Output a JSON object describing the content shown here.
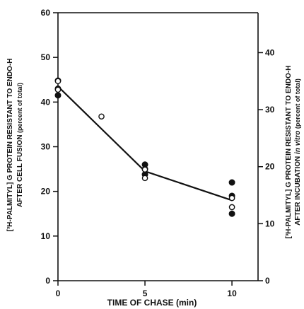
{
  "chart_data": {
    "type": "scatter",
    "xlabel": "TIME OF CHASE (min)",
    "ylabel_left": {
      "line1": "[³H-PALMITYL] G PROTEIN RESISTANT TO ENDO-H",
      "line2_main": "AFTER CELL FUSION",
      "line2_unit": " (percent of total)"
    },
    "ylabel_right": {
      "line1": "[³H-PALMITYL] G PROTEIN RESISTANT TO ENDO-H",
      "line2_main": "AFTER INCUBATION ",
      "line2_italic": "in vitro",
      "line2_unit": " (percent of total)"
    },
    "x_ticks": [
      "0",
      "5",
      "10"
    ],
    "x_tick_values": [
      0,
      5,
      10
    ],
    "xlim": [
      0,
      11.5
    ],
    "left_y_ticks": [
      "0",
      "10",
      "20",
      "30",
      "40",
      "50",
      "60"
    ],
    "left_y_tick_values": [
      0,
      10,
      20,
      30,
      40,
      50,
      60
    ],
    "ylim_left": [
      0,
      60
    ],
    "right_y_ticks": [
      "0",
      "10",
      "20",
      "30",
      "40"
    ],
    "right_y_tick_values": [
      0,
      10,
      20,
      30,
      40
    ],
    "ylim_right": [
      0,
      47
    ],
    "grid": false,
    "series": [
      {
        "marker": "filled-circle",
        "axis": "left",
        "points": [
          [
            0,
            41.5
          ],
          [
            0,
            43.0
          ],
          [
            0,
            44.8
          ],
          [
            5,
            23.8
          ],
          [
            5,
            25.0
          ],
          [
            5,
            26.0
          ],
          [
            10,
            15.0
          ],
          [
            10,
            19.0
          ],
          [
            10,
            22.0
          ]
        ]
      },
      {
        "marker": "open-circle",
        "axis": "right",
        "points": [
          [
            0,
            33.5
          ],
          [
            0,
            35.0
          ],
          [
            2.5,
            28.8
          ],
          [
            5,
            18.0
          ],
          [
            5,
            19.5
          ],
          [
            10,
            12.9
          ],
          [
            10,
            14.5
          ]
        ]
      },
      {
        "marker": "line",
        "axis": "left",
        "points": [
          [
            0,
            43.5
          ],
          [
            5,
            24.5
          ],
          [
            10,
            18.0
          ]
        ]
      }
    ]
  }
}
